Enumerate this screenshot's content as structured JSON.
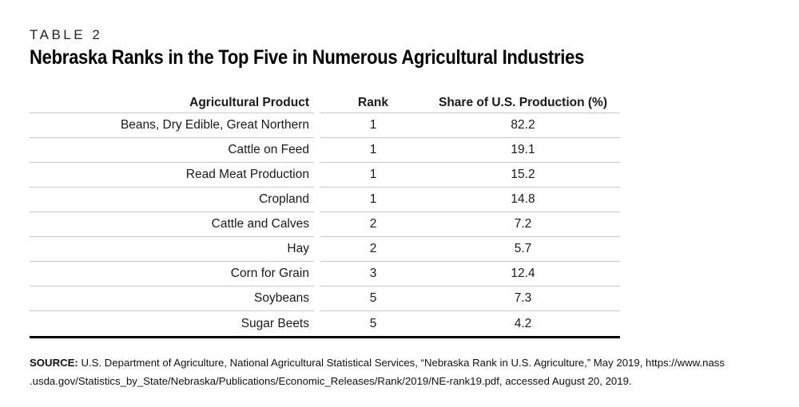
{
  "header": {
    "table_label": "TABLE 2",
    "title": "Nebraska Ranks in the Top Five in Numerous Agricultural Industries"
  },
  "table": {
    "columns": [
      "Agricultural Product",
      "Rank",
      "Share of U.S. Production (%)"
    ],
    "rows": [
      {
        "product": "Beans, Dry Edible, Great Northern",
        "rank": "1",
        "share": "82.2"
      },
      {
        "product": "Cattle on Feed",
        "rank": "1",
        "share": "19.1"
      },
      {
        "product": "Read Meat Production",
        "rank": "1",
        "share": "15.2"
      },
      {
        "product": "Cropland",
        "rank": "1",
        "share": "14.8"
      },
      {
        "product": "Cattle and Calves",
        "rank": "2",
        "share": "7.2"
      },
      {
        "product": "Hay",
        "rank": "2",
        "share": "5.7"
      },
      {
        "product": "Corn for Grain",
        "rank": "3",
        "share": "12.4"
      },
      {
        "product": "Soybeans",
        "rank": "5",
        "share": "7.3"
      },
      {
        "product": "Sugar Beets",
        "rank": "5",
        "share": "4.2"
      }
    ]
  },
  "source": {
    "label": "SOURCE:",
    "line1": "U.S. Department of Agriculture, National Agricultural Statistical Services, “Nebraska Rank in U.S. Agriculture,” May 2019, https://www.nass",
    "line2": ".usda.gov/Statistics_by_State/Nebraska/Publications/Economic_Releases/Rank/2019/NE-rank19.pdf, accessed August 20, 2019."
  },
  "colors": {
    "text": "#1a1a1a",
    "row_line": "#c9c9c9",
    "table_bottom_line": "#000000",
    "background": "#ffffff"
  }
}
